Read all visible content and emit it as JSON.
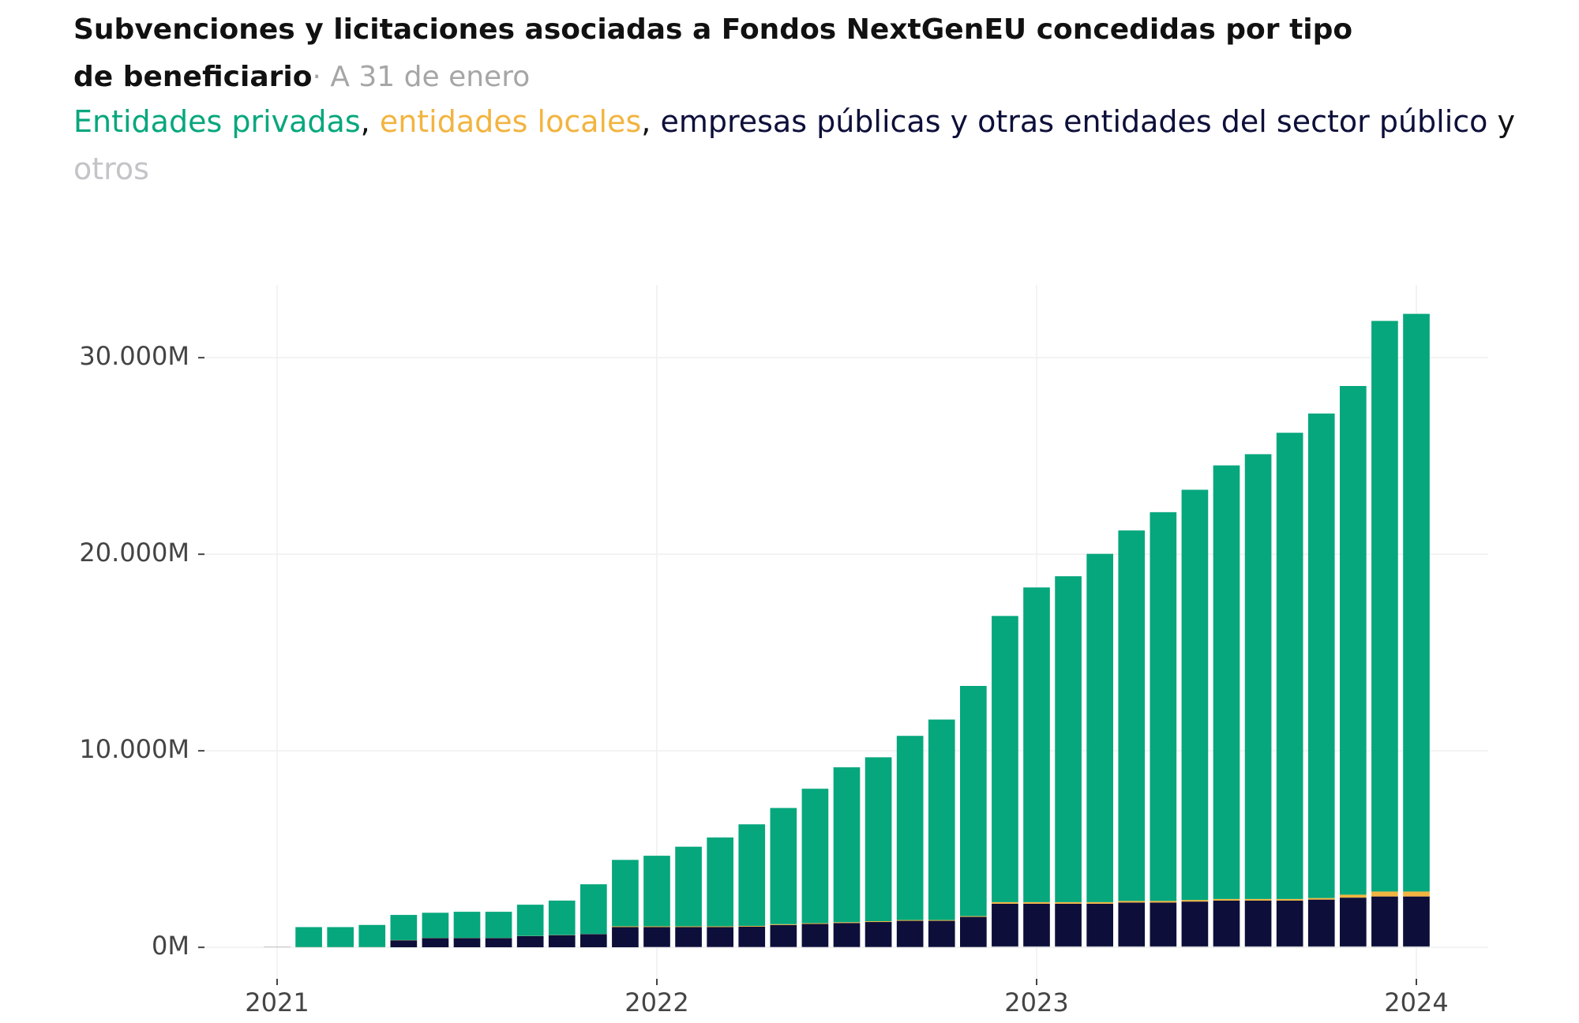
{
  "chart_data": {
    "type": "stacked-bar",
    "title": "Subvenciones y licitaciones asociadas a Fondos NextGenEU concedidas por tipo de beneficiario",
    "subtitle": "· A 31 de enero",
    "legend_separators": [
      ",",
      ",",
      "y"
    ],
    "categories": [
      "2021",
      null,
      null,
      null,
      null,
      null,
      null,
      null,
      null,
      null,
      null,
      null,
      "2022",
      null,
      null,
      null,
      null,
      null,
      null,
      null,
      null,
      null,
      null,
      null,
      "2023",
      null,
      null,
      null,
      null,
      null,
      null,
      null,
      null,
      null,
      null,
      null,
      "2024"
    ],
    "series": [
      {
        "name": "otros",
        "color": "#c4c4c8",
        "values": [
          40,
          5,
          5,
          5,
          5,
          5,
          5,
          5,
          5,
          5,
          5,
          5,
          20,
          20,
          20,
          20,
          20,
          20,
          20,
          20,
          20,
          20,
          20,
          50,
          50,
          50,
          50,
          50,
          50,
          50,
          50,
          50,
          50,
          50,
          50,
          50,
          50
        ]
      },
      {
        "name": "empresas públicas y otras entidades del sector público",
        "color": "#0d0f3a",
        "values": [
          0,
          0,
          0,
          0,
          355,
          465,
          465,
          465,
          565,
          615,
          665,
          1025,
          1010,
          1010,
          1010,
          1030,
          1120,
          1170,
          1220,
          1270,
          1330,
          1330,
          1530,
          2170,
          2170,
          2170,
          2170,
          2230,
          2230,
          2280,
          2330,
          2330,
          2330,
          2380,
          2480,
          2540,
          2540
        ]
      },
      {
        "name": "entidades locales",
        "color": "#f2b440",
        "values": [
          0,
          10,
          10,
          10,
          10,
          10,
          10,
          10,
          10,
          10,
          10,
          40,
          40,
          40,
          40,
          40,
          40,
          40,
          40,
          40,
          40,
          40,
          40,
          80,
          80,
          80,
          80,
          80,
          80,
          80,
          80,
          80,
          80,
          80,
          150,
          250,
          250
        ]
      },
      {
        "name": "Entidades privadas",
        "color": "#06a77d",
        "values": [
          0,
          1015,
          1015,
          1125,
          1280,
          1280,
          1330,
          1330,
          1590,
          1750,
          2530,
          3380,
          3590,
          4050,
          4520,
          5170,
          5910,
          6840,
          7880,
          8340,
          9370,
          10200,
          11710,
          14560,
          16010,
          16580,
          17720,
          18850,
          19780,
          20870,
          22060,
          22630,
          23720,
          24650,
          25880,
          29030,
          29390
        ]
      }
    ],
    "ylim": [
      -1600,
      33700
    ],
    "yticks": [
      {
        "value": 0,
        "label": "0M"
      },
      {
        "value": 10000,
        "label": "10.000M"
      },
      {
        "value": 20000,
        "label": "20.000M"
      },
      {
        "value": 30000,
        "label": "30.000M"
      }
    ],
    "grid": true
  }
}
